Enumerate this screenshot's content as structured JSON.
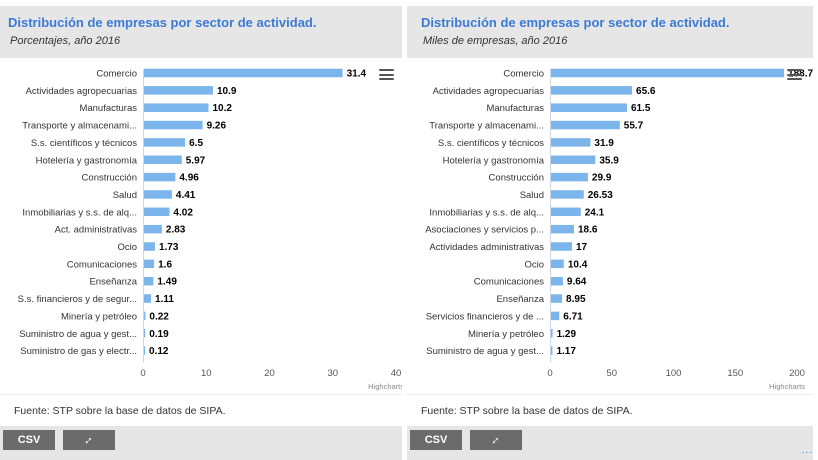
{
  "panels": [
    {
      "title": "Distribución de empresas por sector de actividad.",
      "subtitle": "Porcentajes, año 2016",
      "source": "Fuente: STP sobre la base de datos de SIPA.",
      "csv_label": "CSV",
      "expand_icon": "expand-icon",
      "credit": "Highcharts"
    },
    {
      "title": "Distribución de empresas por sector de actividad.",
      "subtitle": "Miles de empresas, año 2016",
      "source": "Fuente: STP sobre la base de datos de SIPA.",
      "csv_label": "CSV",
      "expand_icon": "expand-icon",
      "credit": "Highcharts"
    }
  ],
  "colors": {
    "bar": "#7cb5ec",
    "title": "#3b7ad6",
    "header_bg": "#e6e6e6",
    "button": "#6b6b6b"
  },
  "chart_data": [
    {
      "type": "bar",
      "orientation": "horizontal",
      "categories": [
        "Comercio",
        "Actividades agropecuarias",
        "Manufacturas",
        "Transporte y almacenami...",
        "S.s. científicos y técnicos",
        "Hotelería y gastronomía",
        "Construcción",
        "Salud",
        "Inmobiliarias y s.s. de alq...",
        "Act. administrativas",
        "Ocio",
        "Comunicaciones",
        "Enseñanza",
        "S.s. financieros y de segur...",
        "Minería y petróleo",
        "Suministro de agua y gest...",
        "Suministro de gas y electr..."
      ],
      "values": [
        31.4,
        10.9,
        10.2,
        9.26,
        6.5,
        5.97,
        4.96,
        4.41,
        4.02,
        2.83,
        1.73,
        1.6,
        1.49,
        1.11,
        0.22,
        0.19,
        0.12
      ],
      "value_labels": [
        "31.4",
        "10.9",
        "10.2",
        "9.26",
        "6.5",
        "5.97",
        "4.96",
        "4.41",
        "4.02",
        "2.83",
        "1.73",
        "1.6",
        "1.49",
        "1.11",
        "0.22",
        "0.19",
        "0.12"
      ],
      "xlim": [
        0,
        40
      ],
      "ticks": [
        0,
        10,
        20,
        30,
        40
      ],
      "grid": false
    },
    {
      "type": "bar",
      "orientation": "horizontal",
      "categories": [
        "Comercio",
        "Actividades agropecuarias",
        "Manufacturas",
        "Transporte y almacenami...",
        "S.s. científicos y técnicos",
        "Hotelería y gastronomía",
        "Construcción",
        "Salud",
        "Inmobiliarias y s.s. de alq...",
        "Asociaciones y servicios p...",
        "Actividades administrativas",
        "Ocio",
        "Comunicaciones",
        "Enseñanza",
        "Servicios financieros y de ...",
        "Minería y petróleo",
        "Suministro de agua y gest..."
      ],
      "values": [
        188.7,
        65.6,
        61.5,
        55.7,
        31.9,
        35.9,
        29.9,
        26.53,
        24.1,
        18.6,
        17,
        10.4,
        9.64,
        8.95,
        6.71,
        1.29,
        1.17
      ],
      "value_labels": [
        "188.7",
        "65.6",
        "61.5",
        "55.7",
        "31.9",
        "35.9",
        "29.9",
        "26.53",
        "24.1",
        "18.6",
        "17",
        "10.4",
        "9.64",
        "8.95",
        "6.71",
        "1.29",
        "1.17"
      ],
      "xlim": [
        0,
        200
      ],
      "ticks": [
        0,
        50,
        100,
        150,
        200
      ],
      "grid": false
    }
  ]
}
